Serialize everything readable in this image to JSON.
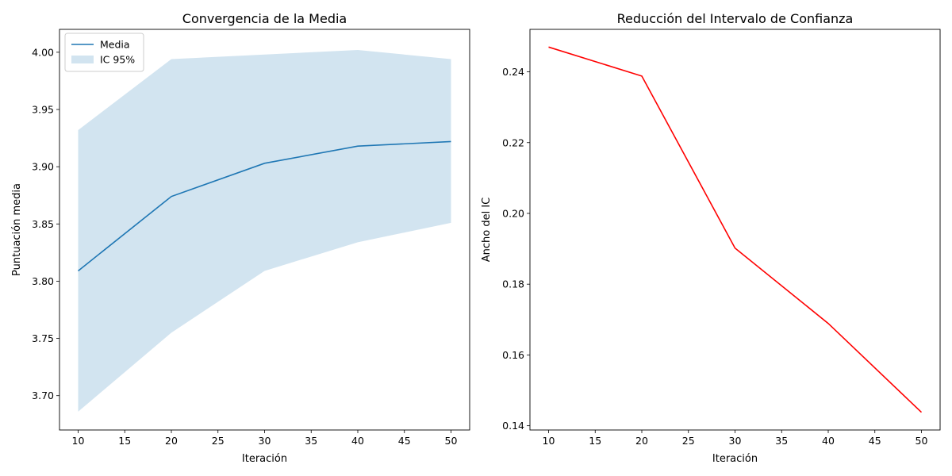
{
  "chart_data": [
    {
      "type": "line",
      "title": "Convergencia de la Media",
      "xlabel": "Iteración",
      "ylabel": "Puntuación media",
      "xlim": [
        8,
        52
      ],
      "ylim": [
        3.67,
        4.02
      ],
      "xticks": [
        "10",
        "15",
        "20",
        "25",
        "30",
        "35",
        "40",
        "45",
        "50"
      ],
      "yticks": [
        "3.70",
        "3.75",
        "3.80",
        "3.85",
        "3.90",
        "3.95",
        "4.00"
      ],
      "x": [
        10,
        20,
        30,
        40,
        50
      ],
      "series": [
        {
          "name": "Media",
          "values": [
            3.809,
            3.874,
            3.903,
            3.918,
            3.922
          ],
          "color": "#1f77b4"
        }
      ],
      "band": {
        "name": "IC 95%",
        "lower": [
          3.686,
          3.755,
          3.809,
          3.834,
          3.851
        ],
        "upper": [
          3.932,
          3.994,
          3.998,
          4.002,
          3.994
        ],
        "color": "#1f77b4",
        "opacity": 0.2
      },
      "legend": "top-left",
      "grid": false
    },
    {
      "type": "line",
      "title": "Reducción del Intervalo de Confianza",
      "xlabel": "Iteración",
      "ylabel": "Ancho del IC",
      "xlim": [
        8,
        52
      ],
      "ylim": [
        0.1388,
        0.252
      ],
      "xticks": [
        "10",
        "15",
        "20",
        "25",
        "30",
        "35",
        "40",
        "45",
        "50"
      ],
      "yticks": [
        "0.14",
        "0.16",
        "0.18",
        "0.20",
        "0.22",
        "0.24"
      ],
      "x": [
        10,
        20,
        30,
        40,
        50
      ],
      "series": [
        {
          "values": [
            0.247,
            0.2388,
            0.1902,
            0.1689,
            0.1438
          ],
          "color": "#ff0000"
        }
      ],
      "grid": false
    }
  ]
}
